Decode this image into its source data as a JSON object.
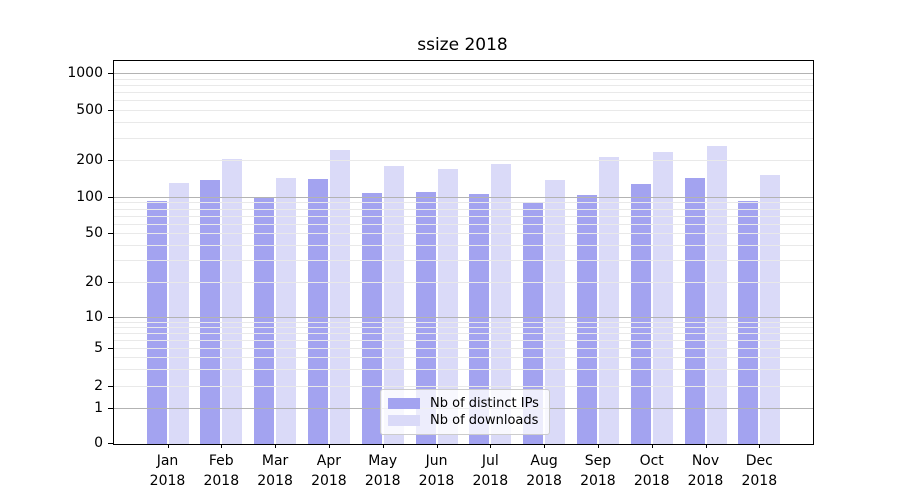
{
  "title": "ssize 2018",
  "year": "2018",
  "chart_data": {
    "type": "bar",
    "title": "ssize 2018",
    "xlabel": "",
    "ylabel": "",
    "yscale": "symlog",
    "ylim": [
      0,
      1270
    ],
    "grid": "on",
    "legend_position": "lower center",
    "categories": [
      "Jan",
      "Feb",
      "Mar",
      "Apr",
      "May",
      "Jun",
      "Jul",
      "Aug",
      "Sep",
      "Oct",
      "Nov",
      "Dec"
    ],
    "category_year": "2018",
    "yticks": [
      0,
      1,
      2,
      5,
      10,
      20,
      50,
      100,
      200,
      500,
      1000
    ],
    "series": [
      {
        "name": "Nb of distinct IPs",
        "color": "#a3a3f0",
        "values": [
          95,
          140,
          101,
          144,
          109,
          112,
          107,
          93,
          105,
          129,
          146,
          95
        ]
      },
      {
        "name": "Nb of downloads",
        "color": "#dadaf8",
        "values": [
          133,
          207,
          146,
          245,
          183,
          172,
          190,
          139,
          214,
          237,
          264,
          153
        ]
      }
    ]
  },
  "legend": {
    "items": [
      {
        "label": "Nb of distinct IPs",
        "color": "#a3a3f0"
      },
      {
        "label": "Nb of downloads",
        "color": "#dadaf8"
      }
    ]
  },
  "colors": {
    "axis": "#000000",
    "grid_major": "#b3b3b3",
    "grid_minor": "#e9e9e9"
  }
}
